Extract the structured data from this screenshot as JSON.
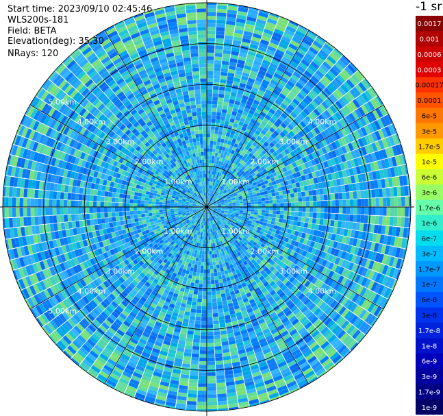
{
  "header": {
    "start_time": "Start time: 2023/09/10 02:45:46",
    "instrument": "WLS200s-181",
    "field": "Field: BETA",
    "elevation": "Elevation(deg): 35.30",
    "nrays": "NRays: 120"
  },
  "chart_data": {
    "type": "heatmap",
    "projection": "polar PPI scan",
    "field": "BETA",
    "elevation_deg": 35.3,
    "n_rays": 120,
    "max_range_km": 5.0,
    "range_rings_km": [
      1.0,
      2.0,
      3.0,
      4.0,
      5.0
    ],
    "range_labels": [
      "1.00km",
      "2.00km",
      "3.00km",
      "4.00km",
      "5.00km"
    ],
    "spokes_every_deg": 30,
    "grid": true,
    "colorbar": {
      "title": "-1 sr",
      "position": "right",
      "ticks": [
        "0.0017",
        "0.001",
        "0.0006",
        "0.0003",
        "0.00017",
        "0.0001",
        "6e-5",
        "3e-5",
        "1.7e-5",
        "1e-5",
        "6e-6",
        "3e-6",
        "1.7e-6",
        "1e-6",
        "6e-7",
        "3e-7",
        "1.7e-7",
        "1e-7",
        "6e-8",
        "3e-8",
        "1.7e-8",
        "1e-8",
        "6e-9",
        "3e-9",
        "1.7e-9",
        "1e-9"
      ],
      "colors": [
        "#8b0000",
        "#b00000",
        "#cc0000",
        "#e00000",
        "#ff3300",
        "#ff5500",
        "#ff7700",
        "#ff9900",
        "#ffcc00",
        "#ffff00",
        "#ccff33",
        "#99ff66",
        "#66ffaa",
        "#33eecc",
        "#00ddee",
        "#00bbff",
        "#0099ff",
        "#0077ff",
        "#0055ff",
        "#0033ee",
        "#0022dd",
        "#0011cc",
        "#0000bb",
        "#0000a0",
        "#000085",
        "#000066"
      ]
    }
  }
}
